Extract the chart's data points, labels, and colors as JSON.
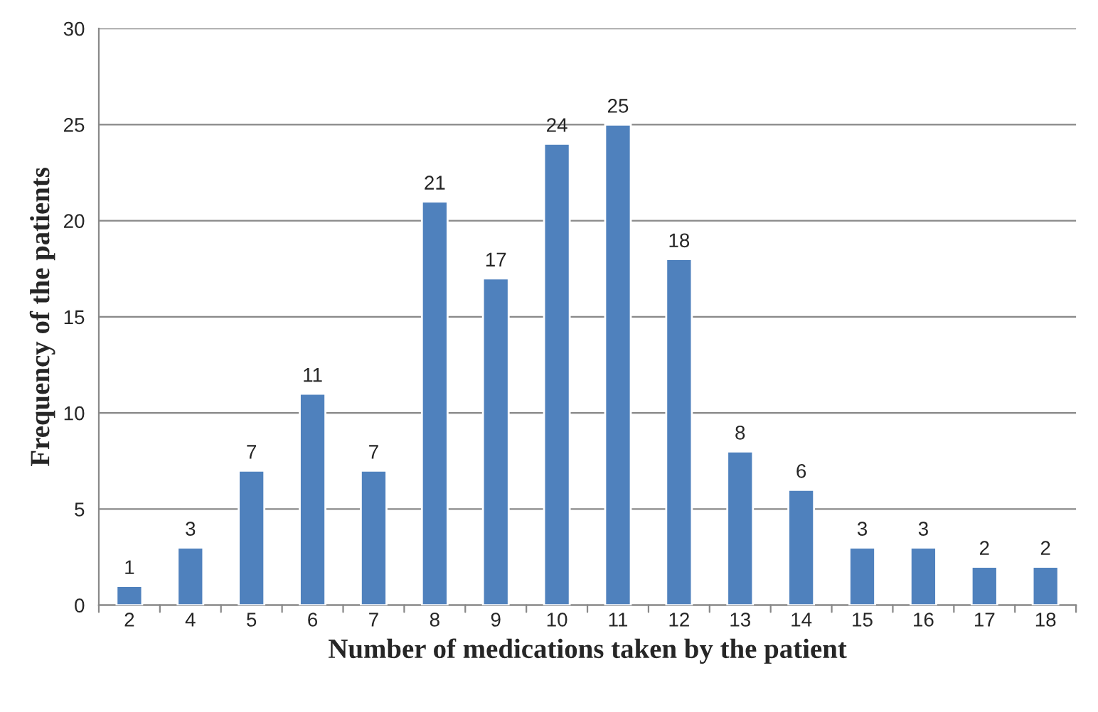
{
  "chart_data": {
    "type": "bar",
    "xlabel": "Number of medications taken by the patient",
    "ylabel": "Frequency of the patients",
    "categories": [
      "2",
      "4",
      "5",
      "6",
      "7",
      "8",
      "9",
      "10",
      "11",
      "12",
      "13",
      "14",
      "15",
      "16",
      "17",
      "18"
    ],
    "values": [
      1,
      3,
      7,
      11,
      7,
      21,
      17,
      24,
      25,
      18,
      8,
      6,
      3,
      3,
      2,
      2
    ],
    "color": "#4f81bd",
    "ylim": [
      0,
      30
    ],
    "yticks": [
      0,
      5,
      10,
      15,
      20,
      25,
      30
    ],
    "grid": "y",
    "data_labels": true
  }
}
